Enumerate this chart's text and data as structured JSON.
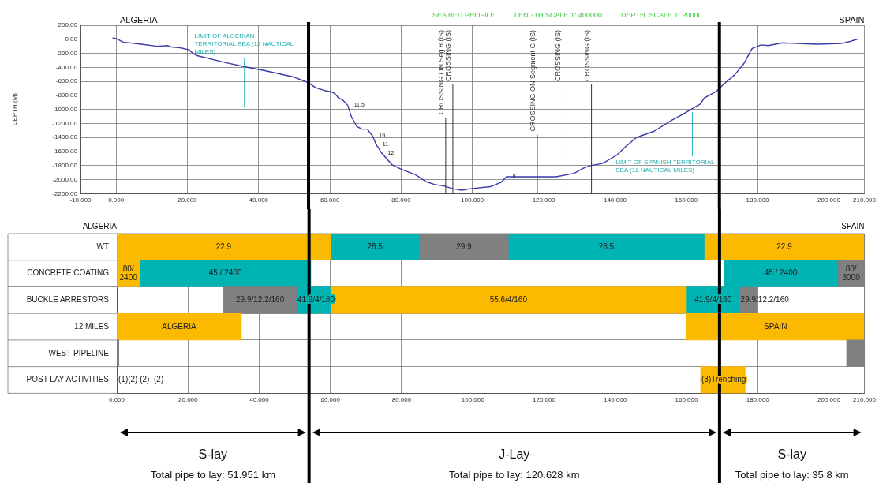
{
  "chart_data": [
    {
      "type": "line",
      "title": "SEA BED PROFILE",
      "ylabel": "DEPTH (M)",
      "annotations": [
        "LENGTH SCALE 1: 400000",
        "DEPTH  SCALE 1: 20000",
        "ALGERIA",
        "SPAIN",
        {
          "text": "11.5",
          "x": 65,
          "y": -940
        },
        {
          "text": "19",
          "x": 72,
          "y": -1380
        },
        {
          "text": "11",
          "x": 73,
          "y": -1500
        },
        {
          "text": "12",
          "x": 74.5,
          "y": -1620
        },
        {
          "text": "8",
          "x": 109.5,
          "y": -1960
        }
      ],
      "series": [
        {
          "color": "#3a3aa8",
          "x": [
            -1,
            0,
            2,
            7,
            11.5,
            14.5,
            15.5,
            18,
            20.5,
            21.5,
            22.5,
            30.5,
            36,
            42,
            50,
            52.5,
            54,
            56,
            58.5,
            60.5,
            61.5,
            62.5,
            63.5,
            65,
            66,
            67.5,
            69,
            70.5,
            72,
            73,
            74.5,
            77.5,
            80,
            84,
            87,
            89.5,
            92,
            94.5,
            97,
            99.5,
            105,
            108,
            109.5,
            110.5,
            123.5,
            128.5,
            131,
            133,
            136.5,
            140.5,
            143,
            146,
            151,
            156,
            159,
            164,
            165,
            168.5,
            170.5,
            173.5,
            176,
            178.5,
            181,
            183,
            187,
            191,
            197,
            203.5,
            206,
            208
          ],
          "values": [
            20,
            10,
            -40,
            -70,
            -100,
            -90,
            -110,
            -120,
            -150,
            -200,
            -230,
            -330,
            -390,
            -450,
            -540,
            -590,
            -620,
            -690,
            -730,
            -750,
            -780,
            -840,
            -860,
            -940,
            -1100,
            -1240,
            -1280,
            -1280,
            -1380,
            -1500,
            -1620,
            -1790,
            -1850,
            -1930,
            -2030,
            -2070,
            -2090,
            -2130,
            -2150,
            -2130,
            -2100,
            -2040,
            -1960,
            -1960,
            -1960,
            -1910,
            -1840,
            -1800,
            -1770,
            -1650,
            -1530,
            -1400,
            -1310,
            -1150,
            -1070,
            -920,
            -840,
            -740,
            -640,
            -510,
            -360,
            -130,
            -80,
            -90,
            -50,
            -60,
            -70,
            -60,
            -30,
            0
          ]
        }
      ],
      "xlim": [
        -10,
        210
      ],
      "xticks": [
        {
          "value": -10,
          "label": "-10.000"
        },
        {
          "value": 0,
          "label": "0.000"
        },
        {
          "value": 20,
          "label": "20.000"
        },
        {
          "value": 40,
          "label": "40.000"
        },
        {
          "value": 60,
          "label": "60.000"
        },
        {
          "value": 80,
          "label": "80.000"
        },
        {
          "value": 100,
          "label": "100.000"
        },
        {
          "value": 120,
          "label": "120.000"
        },
        {
          "value": 140,
          "label": "140.000"
        },
        {
          "value": 160,
          "label": "160.000"
        },
        {
          "value": 180,
          "label": "180.000"
        },
        {
          "value": 200,
          "label": "200.000"
        },
        {
          "value": 210,
          "label": "210.000"
        }
      ],
      "ylim": [
        -2200,
        200
      ],
      "yticks": [
        {
          "value": 200,
          "label": "200.00"
        },
        {
          "value": 0,
          "label": "0.00"
        },
        {
          "value": -200,
          "label": "-200.00"
        },
        {
          "value": -400,
          "label": "-400.00"
        },
        {
          "value": -600,
          "label": "-600.00"
        },
        {
          "value": -800,
          "label": "-800.00"
        },
        {
          "value": -1000,
          "label": "-1000.00"
        },
        {
          "value": -1200,
          "label": "-1200.00"
        },
        {
          "value": -1400,
          "label": "-1400.00"
        },
        {
          "value": -1600,
          "label": "-1600.00"
        },
        {
          "value": -1800,
          "label": "-1800.00"
        },
        {
          "value": -2000,
          "label": "-2000.00"
        },
        {
          "value": -2200,
          "label": "-2200.00"
        }
      ],
      "ref_lines": [
        {
          "axis": "x",
          "value": 36,
          "label": "LIMIT OF ALGERIAN TERRITORIAL SEA (12 NAUTICAL MILES)",
          "color": "#22b0b0"
        },
        {
          "axis": "x",
          "value": 161.7,
          "label": "LIMIT OF SPANISH TERRITORIAL SEA (12 NAUTICAL MILES)",
          "color": "#22b0b0"
        },
        {
          "axis": "x",
          "value": 92.5,
          "label": "CROSSING ON Seg 8 (IS)",
          "color": "#333333"
        },
        {
          "axis": "x",
          "value": 94.5,
          "label": "CROSSING (IS)",
          "color": "#333333"
        },
        {
          "axis": "x",
          "value": 118.2,
          "label": "CROSSING ON Segment C (IS)",
          "color": "#333333"
        },
        {
          "axis": "x",
          "value": 125.4,
          "label": "CROSSING (IS)",
          "color": "#333333"
        },
        {
          "axis": "x",
          "value": 133.4,
          "label": "CROSSING (IS)",
          "color": "#333333"
        },
        {
          "axis": "x",
          "value": 54,
          "color": "#000000"
        },
        {
          "axis": "x",
          "value": 169.3,
          "color": "#000000"
        }
      ],
      "grid": true,
      "legend": false,
      "marker": "none",
      "line_style": "solid"
    },
    {
      "type": "bar",
      "orientation": "horizontal",
      "categories": [
        "WT",
        "CONCRETE COATING",
        "BUCKLE ARRESTORS",
        "12 MILES",
        "WEST PIPELINE",
        "POST LAY ACTIVITIES"
      ],
      "annotations": [
        "ALGERIA",
        "SPAIN",
        "S-lay",
        "Total pipe to lay: 51.951 km",
        "J-Lay",
        "Total pipe to lay: 120.628 km",
        "S-lay",
        "Total pipe to lay: 35.8 km",
        "(1)(2) (2)  (2)",
        {
          "text": "22.9",
          "x": 30,
          "y": "WT"
        },
        {
          "text": "28.5",
          "x": 72.5,
          "y": "WT"
        },
        {
          "text": "29.9",
          "x": 97.5,
          "y": "WT"
        },
        {
          "text": "28.5",
          "x": 137.5,
          "y": "WT"
        },
        {
          "text": "22.9",
          "x": 187.5,
          "y": "WT"
        },
        {
          "text": "80/ 2400",
          "x": 3.25,
          "y": "CONCRETE COATING"
        },
        {
          "text": "45 / 2400",
          "x": 30.5,
          "y": "CONCRETE COATING"
        },
        {
          "text": "45 / 2400",
          "x": 186.5,
          "y": "CONCRETE COATING"
        },
        {
          "text": "80/ 3000",
          "x": 206.25,
          "y": "CONCRETE COATING"
        },
        {
          "text": "29.9/12.2/160",
          "x": 40.25,
          "y": "BUCKLE ARRESTORS"
        },
        {
          "text": "41.9/4/160",
          "x": 55.25,
          "y": "BUCKLE ARRESTORS"
        },
        {
          "text": "55.6/4/160",
          "x": 110,
          "y": "BUCKLE ARRESTORS"
        },
        {
          "text": "41.9/4/160",
          "x": 167.5,
          "y": "BUCKLE ARRESTORS"
        },
        {
          "text": "29.9/12.2/160",
          "x": 177.5,
          "y": "BUCKLE ARRESTORS"
        },
        {
          "text": "ALGERIA",
          "x": 17.5,
          "y": "12 MILES"
        },
        {
          "text": "SPAIN",
          "x": 185,
          "y": "12 MILES"
        },
        {
          "text": "(3)Trenching",
          "x": 170.25,
          "y": "POST LAY ACTIVITIES"
        }
      ],
      "series": [
        {
          "base": [
            0,
            0,
            30,
            0,
            0,
            164
          ],
          "values": [
            60,
            6.5,
            20.5,
            35,
            0.6,
            12.5
          ],
          "colors": [
            "#fbb900",
            "#fbb900",
            "#808080",
            "#fbb900",
            "#808080",
            "#fbb900"
          ]
        },
        {
          "base": [
            60,
            6.5,
            50.5,
            160,
            205,
            null
          ],
          "values": [
            25,
            48,
            9.5,
            50,
            5,
            null
          ],
          "colors": [
            "#00b4b4",
            "#00b4b4",
            "#00b4b4",
            "#fbb900",
            "#808080",
            "#808080"
          ]
        },
        {
          "base": [
            85,
            170.5,
            60,
            null,
            null,
            null
          ],
          "values": [
            25,
            32,
            100,
            null,
            null,
            null
          ],
          "colors": [
            "#808080",
            "#00b4b4",
            "#fbb900",
            "#808080",
            "#808080",
            "#808080"
          ]
        },
        {
          "base": [
            110,
            202.5,
            160,
            null,
            null,
            null
          ],
          "values": [
            55,
            7.5,
            15,
            null,
            null,
            null
          ],
          "colors": [
            "#00b4b4",
            "#808080",
            "#00b4b4",
            "#808080",
            "#808080",
            "#808080"
          ]
        },
        {
          "base": [
            165,
            null,
            175,
            null,
            null,
            null
          ],
          "values": [
            45,
            null,
            5,
            null,
            null,
            null
          ],
          "colors": [
            "#fbb900",
            "#808080",
            "#808080",
            "#808080",
            "#808080",
            "#808080"
          ]
        }
      ],
      "xlim": [
        0,
        210
      ],
      "xticks": [
        {
          "value": 0,
          "label": "0.000"
        },
        {
          "value": 20,
          "label": "20.000"
        },
        {
          "value": 40,
          "label": "40.000"
        },
        {
          "value": 60,
          "label": "60.000"
        },
        {
          "value": 80,
          "label": "80.000"
        },
        {
          "value": 100,
          "label": "100.000"
        },
        {
          "value": 120,
          "label": "120.000"
        },
        {
          "value": 140,
          "label": "140.000"
        },
        {
          "value": 160,
          "label": "160.000"
        },
        {
          "value": 180,
          "label": "180.000"
        },
        {
          "value": 200,
          "label": "200.000"
        },
        {
          "value": 210,
          "label": "210.000"
        }
      ],
      "ref_lines": [
        {
          "axis": "x",
          "value": 54,
          "color": "#000000"
        },
        {
          "axis": "x",
          "value": 169.3,
          "color": "#000000"
        }
      ],
      "grid": true,
      "legend": false
    }
  ]
}
